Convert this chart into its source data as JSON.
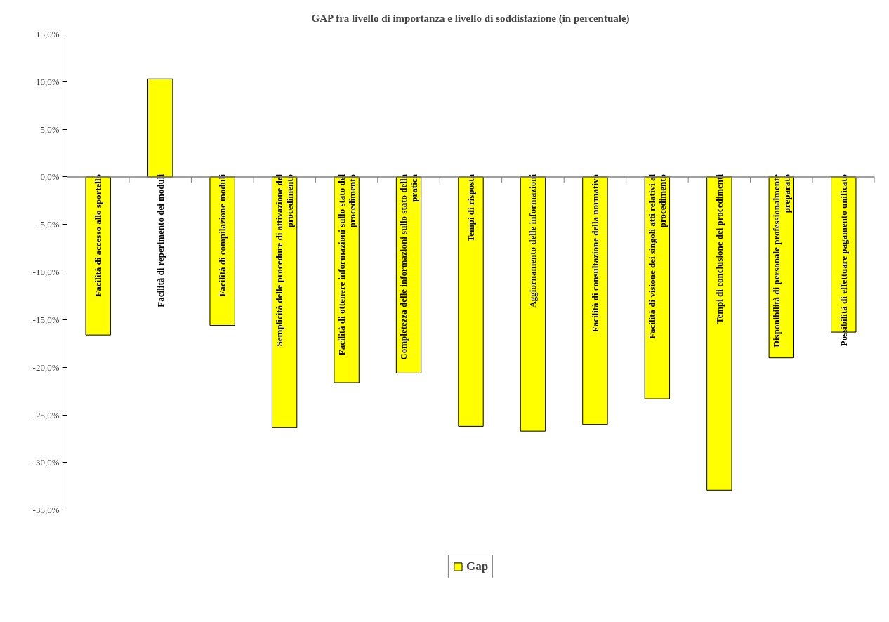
{
  "chart_data": {
    "type": "bar",
    "title": "GAP fra livello di importanza e livello di soddisfazione (in percentuale)",
    "categories": [
      "Facilità di accesso allo sportello",
      "Facilità di reperimento dei moduli",
      "Facilità di compilazione moduli",
      "Semplicità delle procedure di attivazione del procedimento",
      "Facilità di ottenere informazioni sullo stato del procedimento",
      "Completezza delle informazioni sullo stato della pratica",
      "Tempi di risposta",
      "Aggiornamento delle informazioni",
      "Facilità di consultazione della normativa",
      "Facilità di visione dei singoli atti relativi al procedimento",
      "Tempi di conclusione dei procedimenti",
      "Disponibilità di personale professionalmente preparato",
      "Possibilità di effettuare pagamento unificato"
    ],
    "series": [
      {
        "name": "Gap",
        "color": "#ffff00",
        "values": [
          -16.6,
          10.3,
          -15.6,
          -26.3,
          -21.6,
          -20.6,
          -26.2,
          -26.7,
          -26.0,
          -23.3,
          -32.9,
          -19.0,
          -16.3
        ]
      }
    ],
    "ylim": [
      -35,
      15
    ],
    "yticks": [
      {
        "value": -35,
        "label": "-35,0%"
      },
      {
        "value": -30,
        "label": "-30,0%"
      },
      {
        "value": -25,
        "label": "-25,0%"
      },
      {
        "value": -20,
        "label": "-20,0%"
      },
      {
        "value": -15,
        "label": "-15,0%"
      },
      {
        "value": -10,
        "label": "-10,0%"
      },
      {
        "value": -5,
        "label": "-5,0%"
      },
      {
        "value": 0,
        "label": "0,0%"
      },
      {
        "value": 5,
        "label": "5,0%"
      },
      {
        "value": 10,
        "label": "10,0%"
      },
      {
        "value": 15,
        "label": "15,0%"
      }
    ],
    "grid": false,
    "legend": "bottom"
  }
}
